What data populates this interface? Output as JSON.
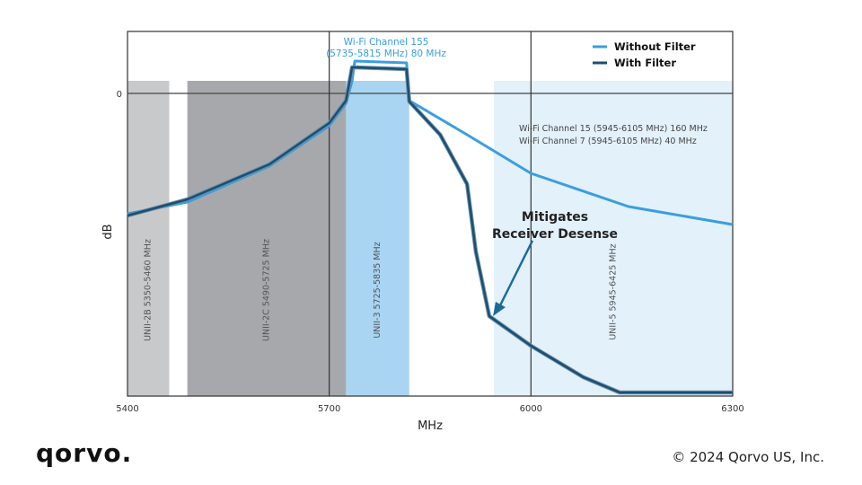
{
  "chart_data": {
    "type": "line",
    "xlabel": "MHz",
    "ylabel": "dB",
    "xlim": [
      5400,
      6300
    ],
    "ylim": [
      -33.7,
      6.9
    ],
    "xticks": [
      5400,
      5700,
      6000,
      6300
    ],
    "yticks": [
      0
    ],
    "grid": true,
    "legend": "top-right",
    "bands": [
      {
        "label": "UNII-2B 5350-5460 MHz",
        "start": 5400,
        "end": 5462,
        "color": "#c8c9cb"
      },
      {
        "label": "UNII-2C 5490-5725 MHz",
        "start": 5489,
        "end": 5725,
        "color": "#a7a8ab"
      },
      {
        "label": "UNII-3 5725-5835 MHz",
        "start": 5725,
        "end": 5819,
        "color": "#a9d5f2"
      },
      {
        "label": "UNII-5 5945-6425 MHz",
        "start": 5945,
        "end": 6300,
        "color": "#e3f1fb"
      }
    ],
    "series": [
      {
        "name": "Without Filter",
        "color": "#3a9ee0",
        "x": [
          5400,
          5489,
          5611,
          5700,
          5725,
          5734,
          5738,
          5815,
          5819,
          5905,
          6000,
          6145,
          6300
        ],
        "y": [
          -13.4,
          -12.1,
          -8.1,
          -3.6,
          -1.1,
          1.4,
          3.6,
          3.4,
          -0.8,
          -4.6,
          -8.9,
          -12.6,
          -14.6
        ]
      },
      {
        "name": "With Filter",
        "color": "#1b4f72",
        "x": [
          5400,
          5489,
          5611,
          5700,
          5725,
          5734,
          5738,
          5815,
          5819,
          5865,
          5905,
          5918,
          5938,
          6000,
          6078,
          6132,
          6300
        ],
        "y": [
          -13.6,
          -11.8,
          -7.9,
          -3.3,
          -0.8,
          2.9,
          2.9,
          2.7,
          -0.9,
          -4.6,
          -10.1,
          -17.6,
          -24.8,
          -28.1,
          -31.6,
          -33.3,
          -33.3
        ]
      }
    ],
    "annotations": {
      "channel155": [
        "Wi-Fi Channel 155",
        "(5735-5815 MHz) 80 MHz"
      ],
      "channels6g": [
        "Wi-Fi Channel 15 (5945-6105 MHz) 160 MHz",
        "Wi-Fi Channel 7 (5945-6105 MHz) 40 MHz"
      ],
      "callout": [
        "Mitigates",
        "Receiver Desense"
      ]
    }
  },
  "footer": {
    "logo": "qorvo",
    "copyright": "© 2024 Qorvo US, Inc."
  }
}
